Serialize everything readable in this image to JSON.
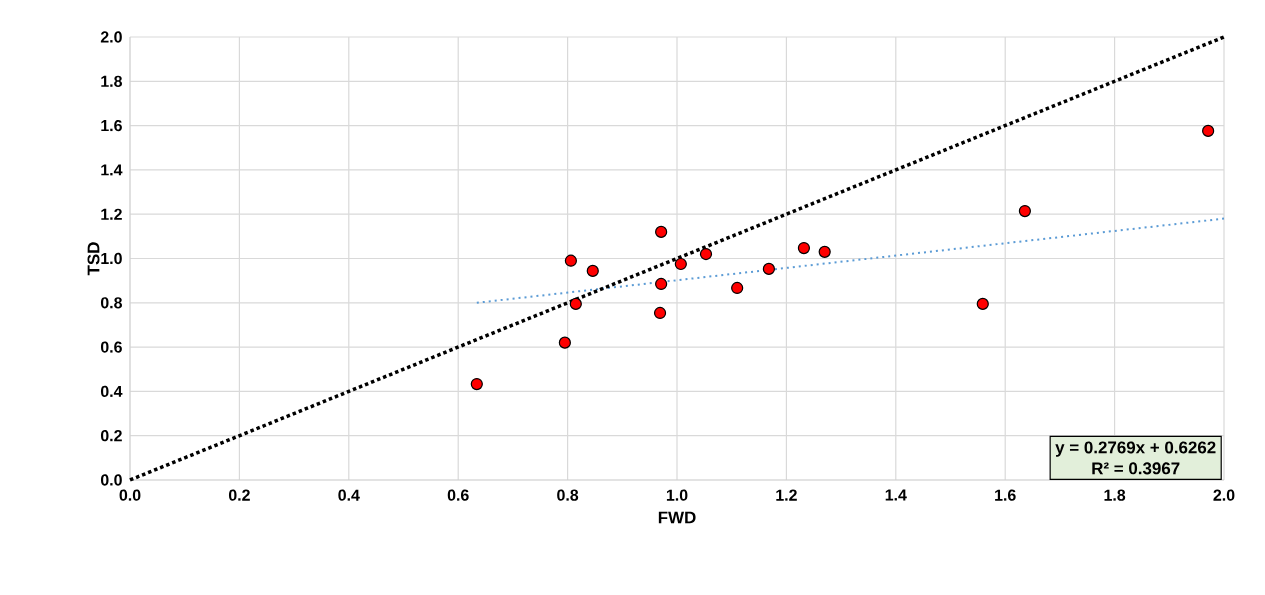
{
  "chart_data": {
    "type": "scatter",
    "xlabel": "FWD",
    "ylabel": "TSD",
    "xlim": [
      0,
      2
    ],
    "ylim": [
      0,
      2
    ],
    "xticks": [
      {
        "value": 0,
        "label": "0.0"
      },
      {
        "value": 0.2,
        "label": "0.2"
      },
      {
        "value": 0.4,
        "label": "0.4"
      },
      {
        "value": 0.6,
        "label": "0.6"
      },
      {
        "value": 0.8,
        "label": "0.8"
      },
      {
        "value": 1,
        "label": "1.0"
      },
      {
        "value": 1.2,
        "label": "1.2"
      },
      {
        "value": 1.4,
        "label": "1.4"
      },
      {
        "value": 1.6,
        "label": "1.6"
      },
      {
        "value": 1.8,
        "label": "1.8"
      },
      {
        "value": 2,
        "label": "2.0"
      }
    ],
    "yticks": [
      {
        "value": 0,
        "label": "0.0"
      },
      {
        "value": 0.2,
        "label": "0.2"
      },
      {
        "value": 0.4,
        "label": "0.4"
      },
      {
        "value": 0.6,
        "label": "0.6"
      },
      {
        "value": 0.8,
        "label": "0.8"
      },
      {
        "value": 1,
        "label": "1.0"
      },
      {
        "value": 1.2,
        "label": "1.2"
      },
      {
        "value": 1.4,
        "label": "1.4"
      },
      {
        "value": 1.6,
        "label": "1.6"
      },
      {
        "value": 1.8,
        "label": "1.8"
      },
      {
        "value": 2,
        "label": "2.0"
      }
    ],
    "grid": true,
    "series": [
      {
        "color": "#ff0000",
        "marker": "circle",
        "x": [
          0.634,
          0.795,
          0.806,
          0.815,
          0.846,
          0.971,
          0.971,
          0.969,
          1.007,
          1.053,
          1.11,
          1.168,
          1.232,
          1.27,
          1.559,
          1.636,
          1.971
        ],
        "values": [
          0.433,
          0.62,
          0.99,
          0.795,
          0.944,
          1.12,
          0.885,
          0.754,
          0.975,
          1.02,
          0.867,
          0.953,
          1.047,
          1.03,
          0.795,
          1.214,
          1.576
        ]
      },
      {
        "type": "line",
        "color": "#5b9bd5",
        "line_style": "dotted",
        "marker": "none",
        "x": [
          0.634,
          2.0
        ],
        "values": [
          0.8,
          1.18
        ]
      },
      {
        "type": "line",
        "color": "#000000",
        "line_style": "dotted",
        "marker": "none",
        "x": [
          0,
          2
        ],
        "values": [
          0,
          2
        ]
      }
    ],
    "annotations": [
      "y = 0.2769x + 0.6262",
      "R² = 0.3967"
    ]
  }
}
